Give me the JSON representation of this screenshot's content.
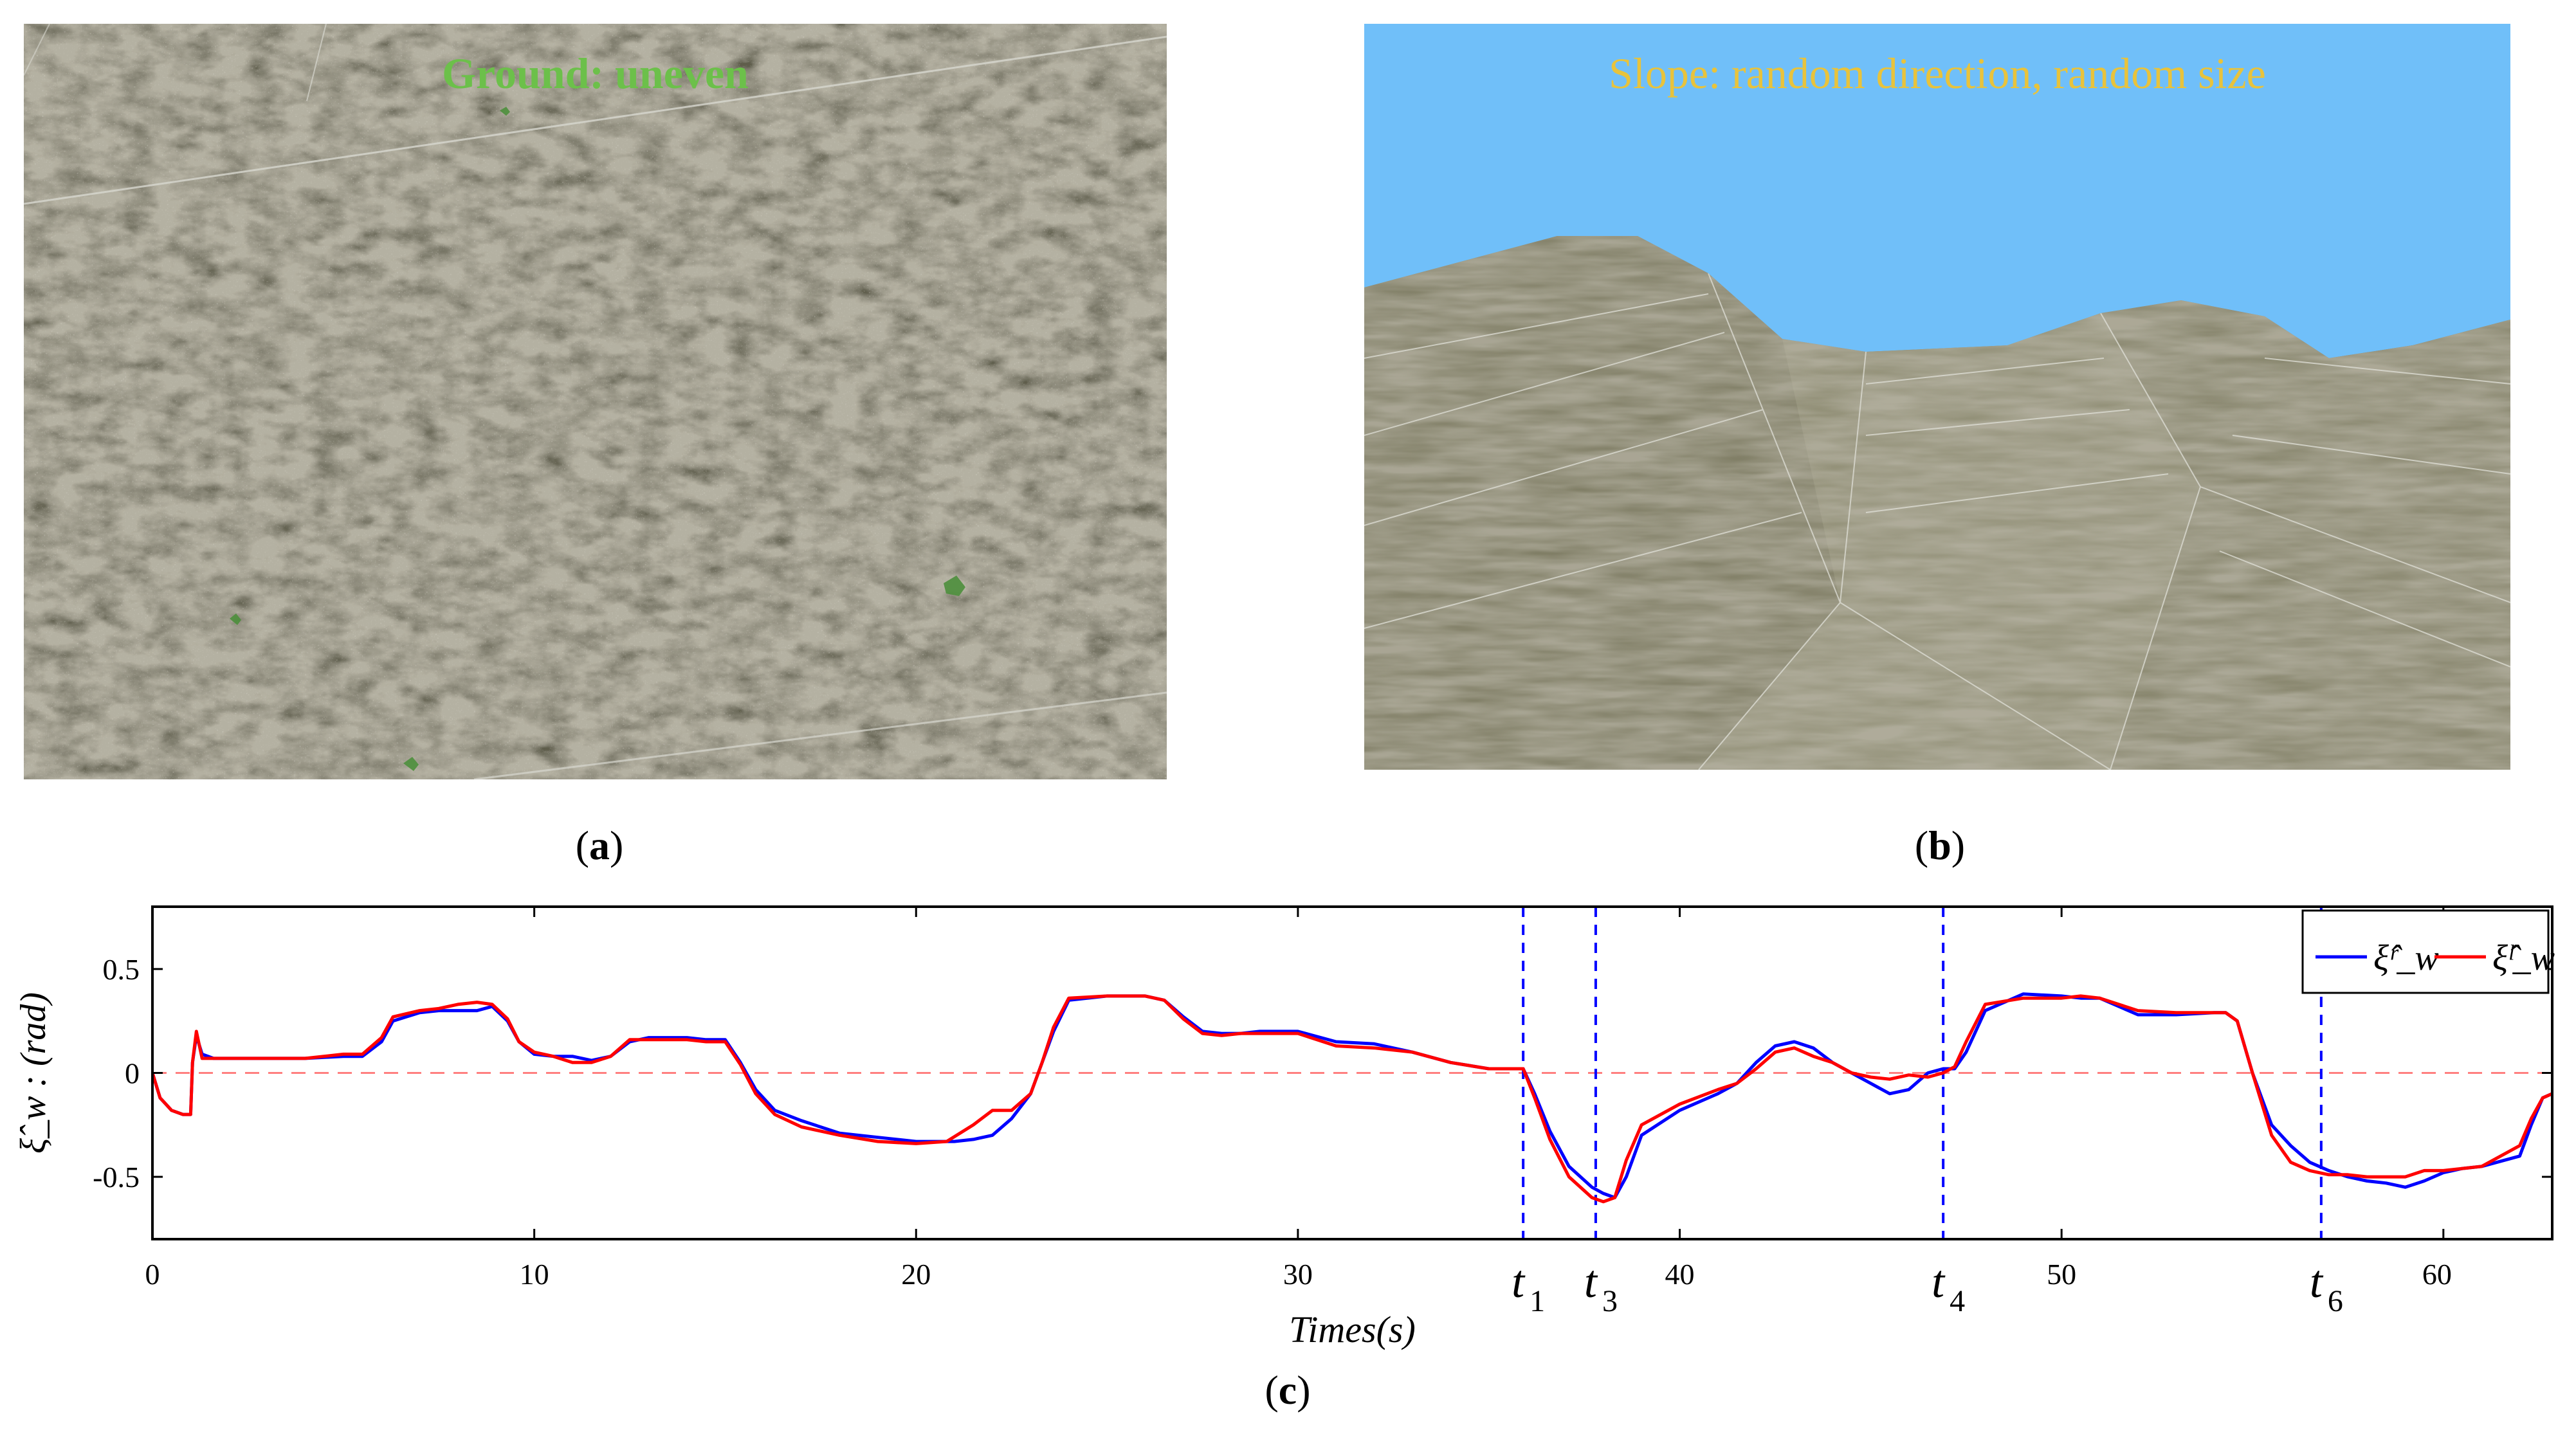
{
  "panel_a": {
    "overlay_text": "Ground: uneven",
    "caption_open": "(",
    "caption_letter": "a",
    "caption_close": ")"
  },
  "panel_b": {
    "overlay_text": "Slope: random direction, random size",
    "caption_open": "(",
    "caption_letter": "b",
    "caption_close": ")"
  },
  "panel_c": {
    "caption_open": "(",
    "caption_letter": "c",
    "caption_close": ")"
  },
  "colors": {
    "sky": "#70bff9",
    "ground": "#8a8a70",
    "series_r": "#0000ff",
    "series_l": "#ff0000",
    "zero_line": "#ff8080",
    "vline": "#0000ff"
  },
  "chart_data": {
    "type": "line",
    "xlabel": "Times(s)",
    "ylabel": "ξ̂_w : (rad)",
    "xlim": [
      0,
      60
    ],
    "ylim": [
      -0.8,
      0.8
    ],
    "xticks": [
      0,
      10,
      20,
      30,
      40,
      50,
      60
    ],
    "yticks": [
      0.5,
      0,
      -0.5
    ],
    "ytick_labels": [
      "0.5",
      "0",
      "-0.5"
    ],
    "grid": false,
    "legend": "top-right",
    "zero_line": 0,
    "events": [
      {
        "label": "t",
        "sub": "1",
        "x": 35.9
      },
      {
        "label": "t",
        "sub": "3",
        "x": 37.8
      },
      {
        "label": "t",
        "sub": "4",
        "x": 46.9
      },
      {
        "label": "t",
        "sub": "6",
        "x": 56.8
      }
    ],
    "series": [
      {
        "name": "ξ̂ʳ_w",
        "color": "#0000ff",
        "x": [
          0,
          0.2,
          0.5,
          0.8,
          1.0,
          1.05,
          1.15,
          1.3,
          1.6,
          2,
          3,
          4,
          5,
          5.5,
          6,
          6.3,
          7,
          7.5,
          8,
          8.5,
          8.9,
          9.3,
          9.6,
          10,
          10.5,
          11,
          11.5,
          12,
          12.5,
          13,
          13.5,
          14,
          14.5,
          15,
          15.4,
          15.8,
          16.3,
          17,
          18,
          19,
          20,
          21,
          21.5,
          22,
          22.5,
          23,
          23.3,
          23.6,
          24,
          25,
          26,
          26.5,
          27,
          27.5,
          28,
          28.5,
          29,
          30,
          31,
          32,
          33,
          34,
          35,
          35.6,
          35.9,
          36.2,
          36.6,
          37.1,
          37.7,
          38.0,
          38.3,
          38.6,
          39,
          40,
          41,
          41.5,
          42,
          42.5,
          43,
          43.5,
          44,
          44.5,
          45,
          45.5,
          46,
          46.5,
          46.9,
          47.2,
          47.5,
          48,
          49,
          50,
          50.5,
          51,
          52,
          53,
          54,
          54.3,
          54.6,
          55,
          55.5,
          56,
          56.5,
          57,
          57.5,
          58,
          58.5,
          59,
          59.5,
          60,
          60.5,
          61,
          62,
          62.3,
          62.6,
          62.85
        ],
        "y": [
          0,
          -0.12,
          -0.18,
          -0.2,
          -0.2,
          0.05,
          0.18,
          0.09,
          0.07,
          0.07,
          0.07,
          0.07,
          0.08,
          0.08,
          0.15,
          0.25,
          0.29,
          0.3,
          0.3,
          0.3,
          0.32,
          0.25,
          0.15,
          0.09,
          0.08,
          0.08,
          0.06,
          0.08,
          0.15,
          0.17,
          0.17,
          0.17,
          0.16,
          0.16,
          0.05,
          -0.08,
          -0.18,
          -0.23,
          -0.29,
          -0.31,
          -0.33,
          -0.33,
          -0.32,
          -0.3,
          -0.22,
          -0.1,
          0.05,
          0.2,
          0.35,
          0.37,
          0.37,
          0.35,
          0.27,
          0.2,
          0.19,
          0.19,
          0.2,
          0.2,
          0.15,
          0.14,
          0.1,
          0.05,
          0.02,
          0.02,
          0.02,
          -0.1,
          -0.28,
          -0.45,
          -0.55,
          -0.58,
          -0.6,
          -0.5,
          -0.3,
          -0.18,
          -0.1,
          -0.05,
          0.05,
          0.13,
          0.15,
          0.12,
          0.05,
          0.0,
          -0.05,
          -0.1,
          -0.08,
          0.0,
          0.02,
          0.02,
          0.1,
          0.3,
          0.38,
          0.37,
          0.36,
          0.36,
          0.28,
          0.28,
          0.29,
          0.29,
          0.25,
          0.0,
          -0.25,
          -0.35,
          -0.43,
          -0.47,
          -0.5,
          -0.52,
          -0.53,
          -0.55,
          -0.52,
          -0.48,
          -0.46,
          -0.45,
          -0.4,
          -0.25,
          -0.12,
          -0.1
        ]
      },
      {
        "name": "ξ̂ˡ_w",
        "color": "#ff0000",
        "x": [
          0,
          0.2,
          0.5,
          0.8,
          1.0,
          1.05,
          1.15,
          1.3,
          1.6,
          2,
          3,
          4,
          5,
          5.5,
          6,
          6.3,
          7,
          7.5,
          8,
          8.5,
          8.9,
          9.3,
          9.6,
          10,
          10.5,
          11,
          11.5,
          12,
          12.5,
          13,
          13.5,
          14,
          14.5,
          15,
          15.4,
          15.8,
          16.3,
          17,
          18,
          19,
          20,
          20.8,
          21.5,
          22,
          22.5,
          23,
          23.3,
          23.6,
          24,
          25,
          26,
          26.5,
          27,
          27.5,
          28,
          28.5,
          29,
          30,
          31,
          32,
          33,
          34,
          35,
          35.6,
          35.9,
          36.2,
          36.6,
          37.1,
          37.7,
          38.0,
          38.3,
          38.6,
          39,
          40,
          41,
          41.5,
          42,
          42.5,
          43,
          43.5,
          44,
          44.5,
          45,
          45.5,
          46,
          46.5,
          46.9,
          47.2,
          47.5,
          48,
          49,
          50,
          50.5,
          51,
          52,
          53,
          54,
          54.3,
          54.6,
          55,
          55.5,
          56,
          56.5,
          57,
          57.5,
          58,
          58.5,
          59,
          59.5,
          60,
          60.5,
          61,
          62,
          62.3,
          62.6,
          62.85
        ],
        "y": [
          0,
          -0.12,
          -0.18,
          -0.2,
          -0.2,
          0.05,
          0.2,
          0.07,
          0.07,
          0.07,
          0.07,
          0.07,
          0.09,
          0.09,
          0.17,
          0.27,
          0.3,
          0.31,
          0.33,
          0.34,
          0.33,
          0.26,
          0.15,
          0.1,
          0.08,
          0.05,
          0.05,
          0.08,
          0.16,
          0.16,
          0.16,
          0.16,
          0.15,
          0.15,
          0.04,
          -0.1,
          -0.2,
          -0.26,
          -0.3,
          -0.33,
          -0.34,
          -0.33,
          -0.25,
          -0.18,
          -0.18,
          -0.1,
          0.05,
          0.22,
          0.36,
          0.37,
          0.37,
          0.35,
          0.26,
          0.19,
          0.18,
          0.19,
          0.19,
          0.19,
          0.13,
          0.12,
          0.1,
          0.05,
          0.02,
          0.02,
          0.02,
          -0.12,
          -0.32,
          -0.5,
          -0.6,
          -0.62,
          -0.6,
          -0.42,
          -0.25,
          -0.15,
          -0.08,
          -0.05,
          0.02,
          0.1,
          0.12,
          0.08,
          0.05,
          0.0,
          -0.02,
          -0.03,
          -0.01,
          -0.02,
          0.0,
          0.03,
          0.15,
          0.33,
          0.36,
          0.36,
          0.37,
          0.36,
          0.3,
          0.29,
          0.29,
          0.29,
          0.25,
          0.0,
          -0.3,
          -0.43,
          -0.47,
          -0.49,
          -0.49,
          -0.5,
          -0.5,
          -0.5,
          -0.47,
          -0.47,
          -0.46,
          -0.45,
          -0.35,
          -0.22,
          -0.12,
          -0.1
        ]
      }
    ]
  }
}
